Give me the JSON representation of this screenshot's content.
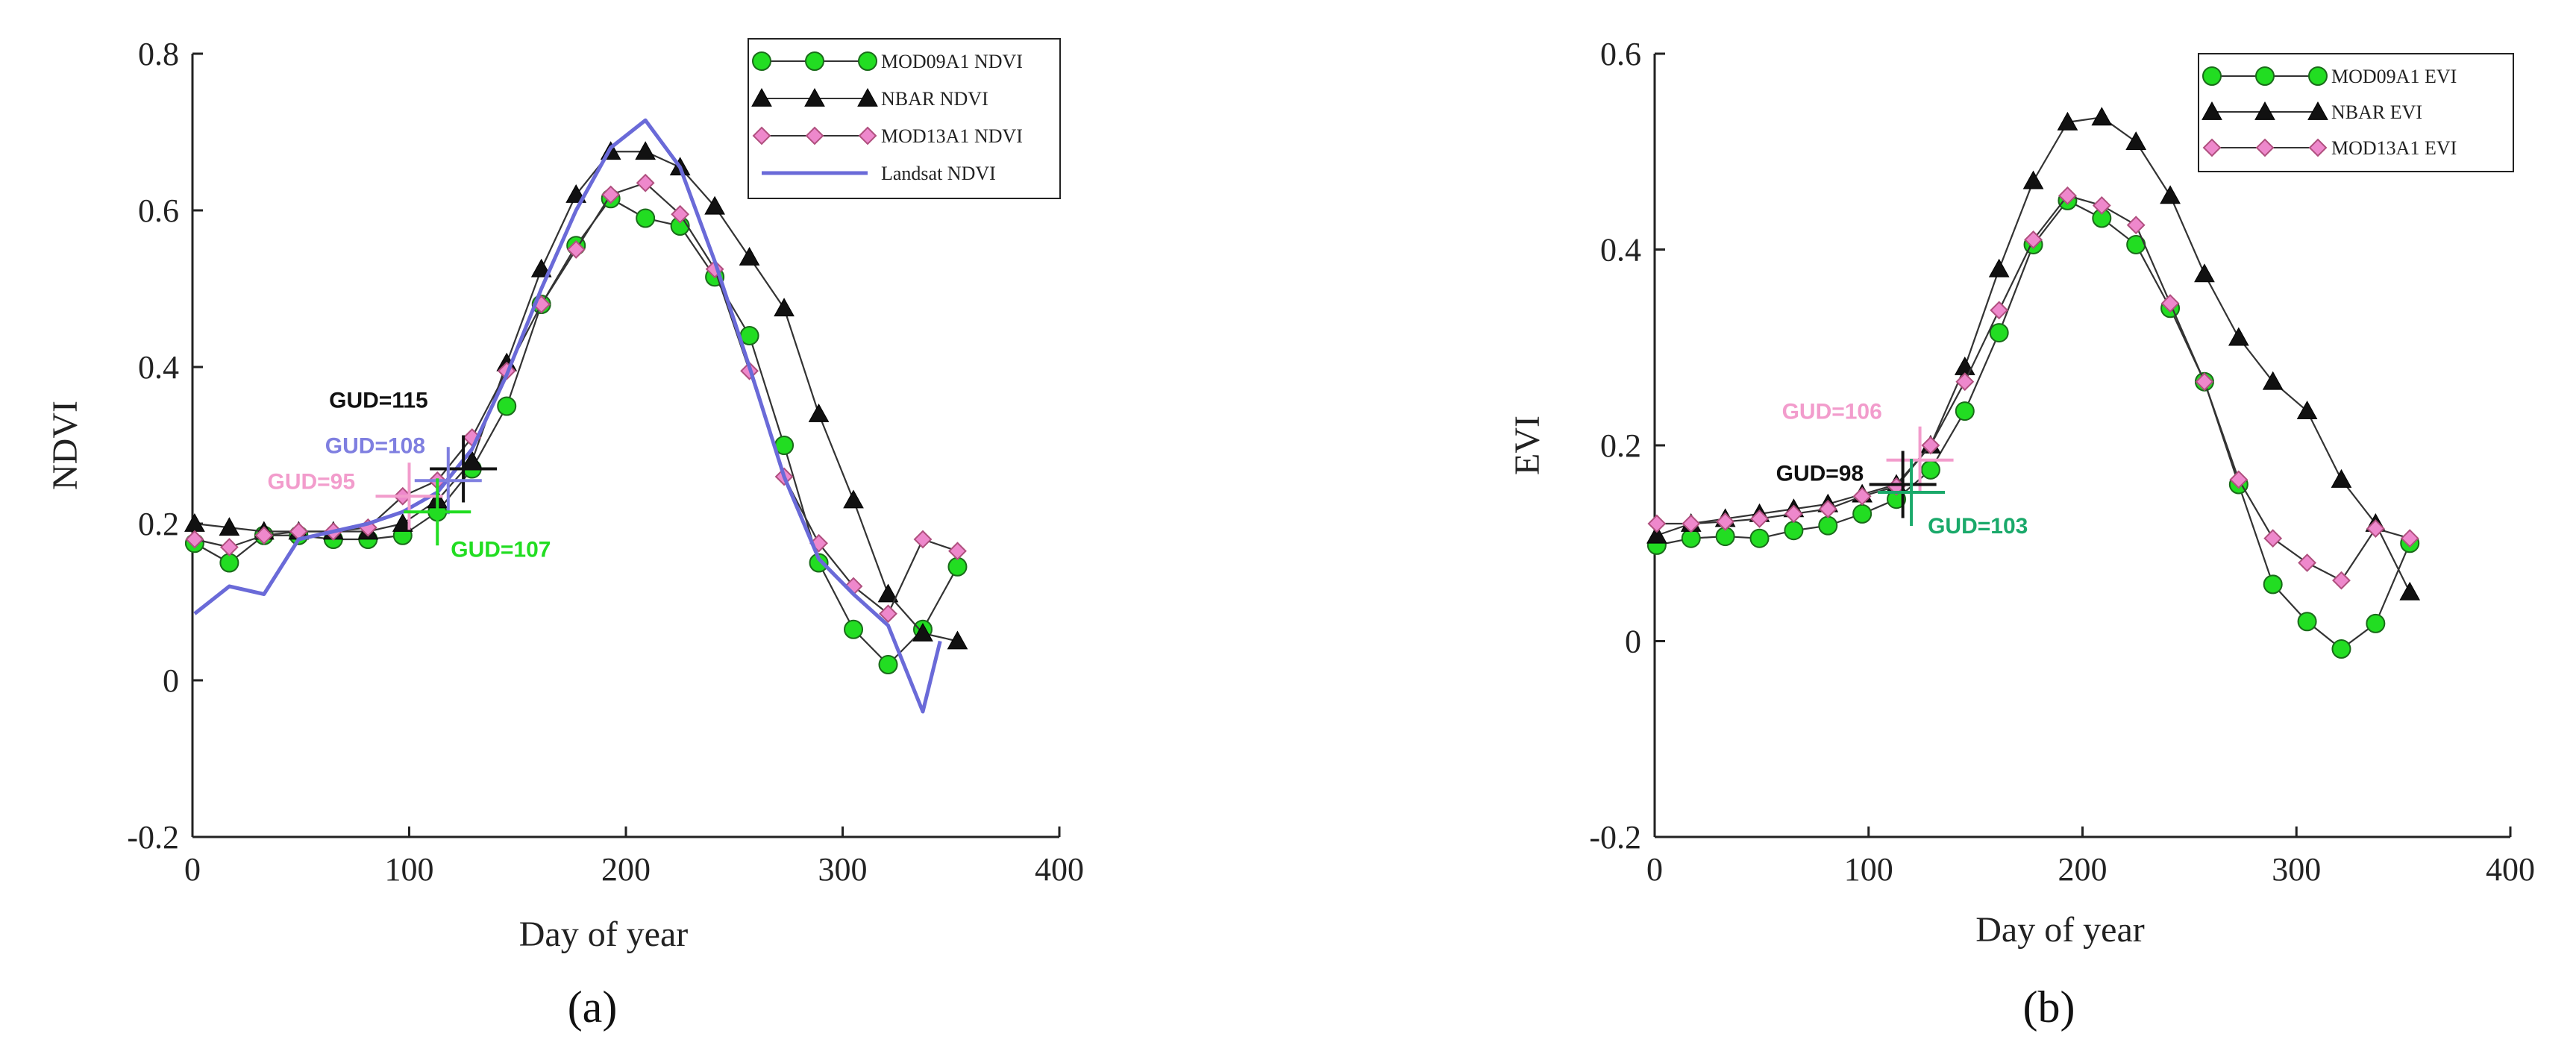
{
  "chart_data": [
    {
      "type": "line",
      "panel_label": "(a)",
      "xlabel": "Day of year",
      "ylabel": "NDVI",
      "xlim": [
        0,
        400
      ],
      "ylim": [
        -0.2,
        0.8
      ],
      "xticks": [
        0,
        100,
        200,
        300,
        400
      ],
      "yticks": [
        -0.2,
        0,
        0.2,
        0.4,
        0.6,
        0.8
      ],
      "xtick_labels": [
        "0",
        "100",
        "200",
        "300",
        "400"
      ],
      "ytick_labels": [
        "-0.2",
        "0",
        "0.2",
        "0.4",
        "0.6",
        "0.8"
      ],
      "legend_position": "top-right",
      "series": [
        {
          "name": "MOD09A1 NDVI",
          "marker": "circle",
          "color": "#22dd22",
          "line_color": "#333333",
          "x": [
            1,
            17,
            33,
            49,
            65,
            81,
            97,
            113,
            129,
            145,
            161,
            177,
            193,
            209,
            225,
            241,
            257,
            273,
            289,
            305,
            321,
            337,
            353
          ],
          "y": [
            0.175,
            0.15,
            0.185,
            0.185,
            0.18,
            0.18,
            0.185,
            0.215,
            0.27,
            0.35,
            0.48,
            0.555,
            0.615,
            0.59,
            0.58,
            0.515,
            0.44,
            0.3,
            0.15,
            0.065,
            0.02,
            0.065,
            0.145
          ]
        },
        {
          "name": "NBAR NDVI",
          "marker": "triangle",
          "color": "#111111",
          "line_color": "#333333",
          "x": [
            1,
            17,
            33,
            49,
            65,
            81,
            97,
            113,
            129,
            145,
            161,
            177,
            193,
            209,
            225,
            241,
            257,
            273,
            289,
            305,
            321,
            337,
            353
          ],
          "y": [
            0.2,
            0.195,
            0.19,
            0.19,
            0.19,
            0.19,
            0.2,
            0.23,
            0.28,
            0.405,
            0.525,
            0.62,
            0.675,
            0.675,
            0.655,
            0.605,
            0.54,
            0.475,
            0.34,
            0.23,
            0.11,
            0.06,
            0.05
          ]
        },
        {
          "name": "MOD13A1 NDVI",
          "marker": "diamond",
          "color": "#ee88cc",
          "line_color": "#333333",
          "x": [
            1,
            17,
            33,
            49,
            65,
            81,
            97,
            113,
            129,
            145,
            161,
            177,
            193,
            209,
            225,
            241,
            257,
            273,
            289,
            305,
            321,
            337,
            353
          ],
          "y": [
            0.18,
            0.17,
            0.185,
            0.19,
            0.19,
            0.195,
            0.235,
            0.255,
            0.31,
            0.395,
            0.48,
            0.55,
            0.62,
            0.635,
            0.595,
            0.525,
            0.395,
            0.26,
            0.175,
            0.12,
            0.085,
            0.18,
            0.165
          ]
        },
        {
          "name": "Landsat NDVI",
          "marker": "none",
          "color": "#6a6ad8",
          "line_color": "#6a6ad8",
          "x": [
            1,
            17,
            33,
            49,
            65,
            81,
            97,
            113,
            129,
            145,
            161,
            177,
            193,
            209,
            225,
            241,
            257,
            273,
            289,
            305,
            321,
            337,
            345
          ],
          "y": [
            0.085,
            0.12,
            0.11,
            0.18,
            0.19,
            0.2,
            0.215,
            0.24,
            0.295,
            0.39,
            0.5,
            0.6,
            0.68,
            0.715,
            0.655,
            0.535,
            0.4,
            0.26,
            0.155,
            0.11,
            0.07,
            -0.04,
            0.05
          ]
        }
      ],
      "annotations": [
        {
          "text": "GUD=115",
          "x": 125,
          "y": 0.27,
          "color": "#111111"
        },
        {
          "text": "GUD=108",
          "x": 118,
          "y": 0.255,
          "color": "#7f7fe0"
        },
        {
          "text": "GUD=95",
          "x": 100,
          "y": 0.235,
          "color": "#f29ccc"
        },
        {
          "text": "GUD=107",
          "x": 113,
          "y": 0.215,
          "color": "#22dd22"
        }
      ]
    },
    {
      "type": "line",
      "panel_label": "(b)",
      "xlabel": "Day of year",
      "ylabel": "EVI",
      "xlim": [
        0,
        400
      ],
      "ylim": [
        -0.2,
        0.6
      ],
      "xticks": [
        0,
        100,
        200,
        300,
        400
      ],
      "yticks": [
        -0.2,
        0,
        0.2,
        0.4,
        0.6
      ],
      "xtick_labels": [
        "0",
        "100",
        "200",
        "300",
        "400"
      ],
      "ytick_labels": [
        "-0.2",
        "0",
        "0.2",
        "0.4",
        "0.6"
      ],
      "legend_position": "top-right",
      "series": [
        {
          "name": "MOD09A1 EVI",
          "marker": "circle",
          "color": "#22dd22",
          "line_color": "#333333",
          "x": [
            1,
            17,
            33,
            49,
            65,
            81,
            97,
            113,
            129,
            145,
            161,
            177,
            193,
            209,
            225,
            241,
            257,
            273,
            289,
            305,
            321,
            337,
            353
          ],
          "y": [
            0.098,
            0.105,
            0.107,
            0.105,
            0.113,
            0.118,
            0.13,
            0.145,
            0.175,
            0.235,
            0.315,
            0.405,
            0.45,
            0.432,
            0.405,
            0.34,
            0.265,
            0.16,
            0.058,
            0.02,
            -0.008,
            0.018,
            0.1
          ]
        },
        {
          "name": "NBAR EVI",
          "marker": "triangle",
          "color": "#111111",
          "line_color": "#333333",
          "x": [
            1,
            17,
            33,
            49,
            65,
            81,
            97,
            113,
            129,
            145,
            161,
            177,
            193,
            209,
            225,
            241,
            257,
            273,
            289,
            305,
            321,
            337,
            353
          ],
          "y": [
            0.108,
            0.12,
            0.125,
            0.13,
            0.135,
            0.14,
            0.15,
            0.16,
            0.2,
            0.28,
            0.38,
            0.47,
            0.53,
            0.535,
            0.51,
            0.455,
            0.375,
            0.31,
            0.265,
            0.235,
            0.165,
            0.12,
            0.05
          ]
        },
        {
          "name": "MOD13A1 EVI",
          "marker": "diamond",
          "color": "#ee88cc",
          "line_color": "#333333",
          "x": [
            1,
            17,
            33,
            49,
            65,
            81,
            97,
            113,
            129,
            145,
            161,
            177,
            193,
            209,
            225,
            241,
            257,
            273,
            289,
            305,
            321,
            337,
            353
          ],
          "y": [
            0.12,
            0.12,
            0.122,
            0.125,
            0.13,
            0.135,
            0.148,
            0.158,
            0.2,
            0.265,
            0.338,
            0.41,
            0.455,
            0.445,
            0.425,
            0.345,
            0.265,
            0.165,
            0.105,
            0.08,
            0.062,
            0.115,
            0.105
          ]
        }
      ],
      "annotations": [
        {
          "text": "GUD=106",
          "x": 124,
          "y": 0.185,
          "color": "#f29ccc"
        },
        {
          "text": "GUD=98",
          "x": 116,
          "y": 0.16,
          "color": "#111111"
        },
        {
          "text": "GUD=103",
          "x": 120,
          "y": 0.152,
          "color": "#1aa96a"
        }
      ]
    }
  ]
}
